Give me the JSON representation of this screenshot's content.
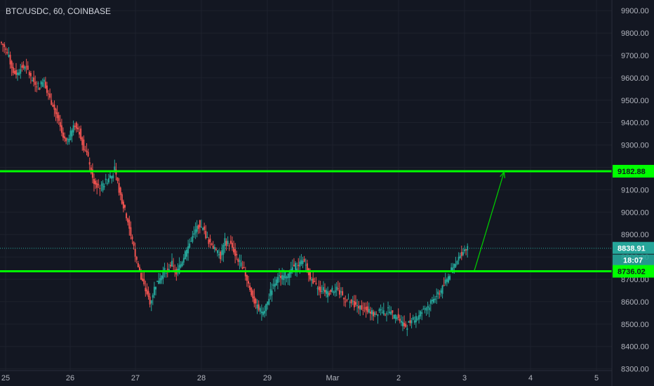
{
  "header": {
    "title": "BTC/USDC, 60, COINBASE"
  },
  "colors": {
    "background": "#131722",
    "up": "#26a69a",
    "down": "#ef5350",
    "level_line": "#00ff00",
    "arrow": "#00c800",
    "axis_text": "#b2b5be",
    "current_tag": "#26a69a"
  },
  "chart_data": {
    "type": "candlestick",
    "title": "BTC/USDC, 60, COINBASE",
    "y_axis": {
      "ticks": [
        9900,
        9800,
        9700,
        9600,
        9500,
        9400,
        9300,
        9200,
        9100,
        9000,
        8900,
        8800,
        8700,
        8600,
        8500,
        8400,
        8300
      ],
      "tick_labels": [
        "9900.00",
        "9800.00",
        "9700.00",
        "9600.00",
        "9500.00",
        "9400.00",
        "9300.00",
        "9200.00",
        "9100.00",
        "9000.00",
        "8900.00",
        "8800.00",
        "8700.00",
        "8600.00",
        "8500.00",
        "8400.00",
        "8300.00"
      ],
      "ylim": [
        8280,
        9935
      ]
    },
    "x_axis": {
      "tick_labels": [
        "25",
        "26",
        "27",
        "28",
        "29",
        "Mar",
        "2",
        "3",
        "4",
        "5"
      ]
    },
    "levels": [
      {
        "label": "9182.88",
        "value": 9182.88
      },
      {
        "label": "8736.02",
        "value": 8736.02
      }
    ],
    "current_price": {
      "label": "8838.91",
      "value": 8838.91,
      "countdown": "18:07"
    },
    "arrow": {
      "from": {
        "x": "3",
        "y": 8740
      },
      "to": {
        "x": "3.6",
        "y": 9180
      }
    },
    "close_series": [
      9740,
      9690,
      9630,
      9620,
      9650,
      9640,
      9600,
      9580,
      9560,
      9600,
      9520,
      9480,
      9420,
      9350,
      9310,
      9350,
      9390,
      9360,
      9290,
      9240,
      9150,
      9120,
      9110,
      9140,
      9160,
      9190,
      9100,
      9030,
      8960,
      8870,
      8780,
      8700,
      8650,
      8600,
      8660,
      8700,
      8730,
      8740,
      8770,
      8720,
      8770,
      8820,
      8860,
      8900,
      8940,
      8920,
      8880,
      8860,
      8820,
      8800,
      8870,
      8860,
      8830,
      8780,
      8760,
      8700,
      8640,
      8580,
      8560,
      8560,
      8620,
      8680,
      8700,
      8720,
      8720,
      8740,
      8760,
      8770,
      8780,
      8730,
      8680,
      8660,
      8650,
      8640,
      8650,
      8660,
      8640,
      8620,
      8600,
      8590,
      8580,
      8580,
      8560,
      8560,
      8540,
      8570,
      8550,
      8560,
      8540,
      8530,
      8510,
      8490,
      8510,
      8520,
      8540,
      8560,
      8580,
      8610,
      8630,
      8650,
      8690,
      8720,
      8760,
      8790,
      8830,
      8840
    ]
  }
}
